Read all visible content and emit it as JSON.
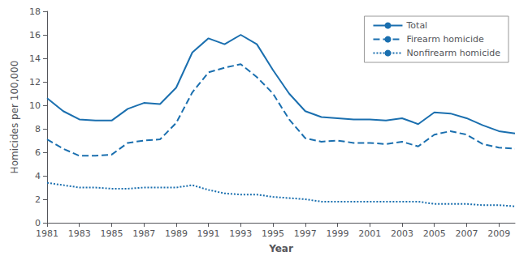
{
  "chart_data": {
    "type": "line",
    "x": [
      1981,
      1982,
      1983,
      1984,
      1985,
      1986,
      1987,
      1988,
      1989,
      1990,
      1991,
      1992,
      1993,
      1994,
      1995,
      1996,
      1997,
      1998,
      1999,
      2000,
      2001,
      2002,
      2003,
      2004,
      2005,
      2006,
      2007,
      2008,
      2009,
      2010
    ],
    "series": [
      {
        "name": "Total",
        "color": "#1a6faf",
        "line_style": "solid",
        "values": [
          10.6,
          9.5,
          8.8,
          8.7,
          8.7,
          9.7,
          10.2,
          10.1,
          11.5,
          14.5,
          15.7,
          15.2,
          16.0,
          15.2,
          13.0,
          11.0,
          9.5,
          9.0,
          8.9,
          8.8,
          8.8,
          8.7,
          8.9,
          8.4,
          9.4,
          9.3,
          8.9,
          8.3,
          7.8,
          7.6
        ]
      },
      {
        "name": "Firearm homicide",
        "color": "#1a6faf",
        "line_style": "dashed",
        "values": [
          7.1,
          6.3,
          5.7,
          5.7,
          5.8,
          6.8,
          7.0,
          7.1,
          8.5,
          11.1,
          12.8,
          13.2,
          13.5,
          12.4,
          11.0,
          8.8,
          7.2,
          6.9,
          7.0,
          6.8,
          6.8,
          6.7,
          6.9,
          6.5,
          7.5,
          7.8,
          7.5,
          6.7,
          6.4,
          6.3
        ]
      },
      {
        "name": "Nonfirearm homicide",
        "color": "#1a6faf",
        "line_style": "dotted",
        "values": [
          3.4,
          3.2,
          3.0,
          3.0,
          2.9,
          2.9,
          3.0,
          3.0,
          3.0,
          3.2,
          2.8,
          2.5,
          2.4,
          2.4,
          2.2,
          2.1,
          2.0,
          1.8,
          1.8,
          1.8,
          1.8,
          1.8,
          1.8,
          1.8,
          1.6,
          1.6,
          1.6,
          1.5,
          1.5,
          1.4
        ]
      }
    ],
    "xlabel": "Year",
    "ylabel": "Homicides per 100,000",
    "xlim": [
      1981,
      2010
    ],
    "ylim": [
      0,
      18
    ],
    "xticks": [
      1981,
      1983,
      1985,
      1987,
      1989,
      1991,
      1993,
      1995,
      1997,
      1999,
      2001,
      2003,
      2005,
      2007,
      2009
    ],
    "yticks": [
      0,
      2,
      4,
      6,
      8,
      10,
      12,
      14,
      16,
      18
    ],
    "grid": false,
    "legend": "upper right"
  }
}
